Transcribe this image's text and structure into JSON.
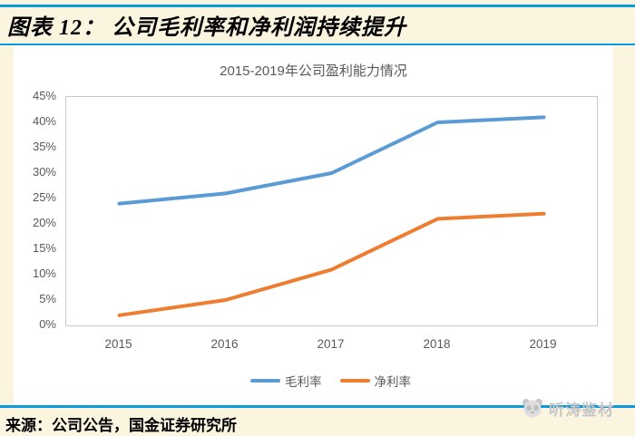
{
  "header": {
    "figure_title": "图表 12： 公司毛利率和净利润持续提升"
  },
  "chart_data": {
    "type": "line",
    "title": "2015-2019年公司盈利能力情况",
    "categories": [
      "2015",
      "2016",
      "2017",
      "2018",
      "2019"
    ],
    "series": [
      {
        "name": "毛利率",
        "color": "#5B9BD5",
        "values": [
          24,
          26,
          30,
          40,
          41
        ]
      },
      {
        "name": "净利率",
        "color": "#ED7D31",
        "values": [
          2,
          5,
          11,
          21,
          22
        ]
      }
    ],
    "xlabel": "",
    "ylabel": "",
    "ylim": [
      0,
      45
    ],
    "ytick_step": 5,
    "ytick_labels": [
      "0%",
      "5%",
      "10%",
      "15%",
      "20%",
      "25%",
      "30%",
      "35%",
      "40%",
      "45%"
    ],
    "grid": false,
    "legend_position": "bottom"
  },
  "footer": {
    "source": "来源：公司公告，国金证券研究所"
  },
  "watermark": {
    "text": "听涛鉴材"
  },
  "colors": {
    "accent_blue": "#0D9BE0",
    "page_background": "#FBF4DF",
    "axis_text": "#595959",
    "plot_border": "#C9C9C9",
    "watermark_gray": "#C6C6C6"
  }
}
